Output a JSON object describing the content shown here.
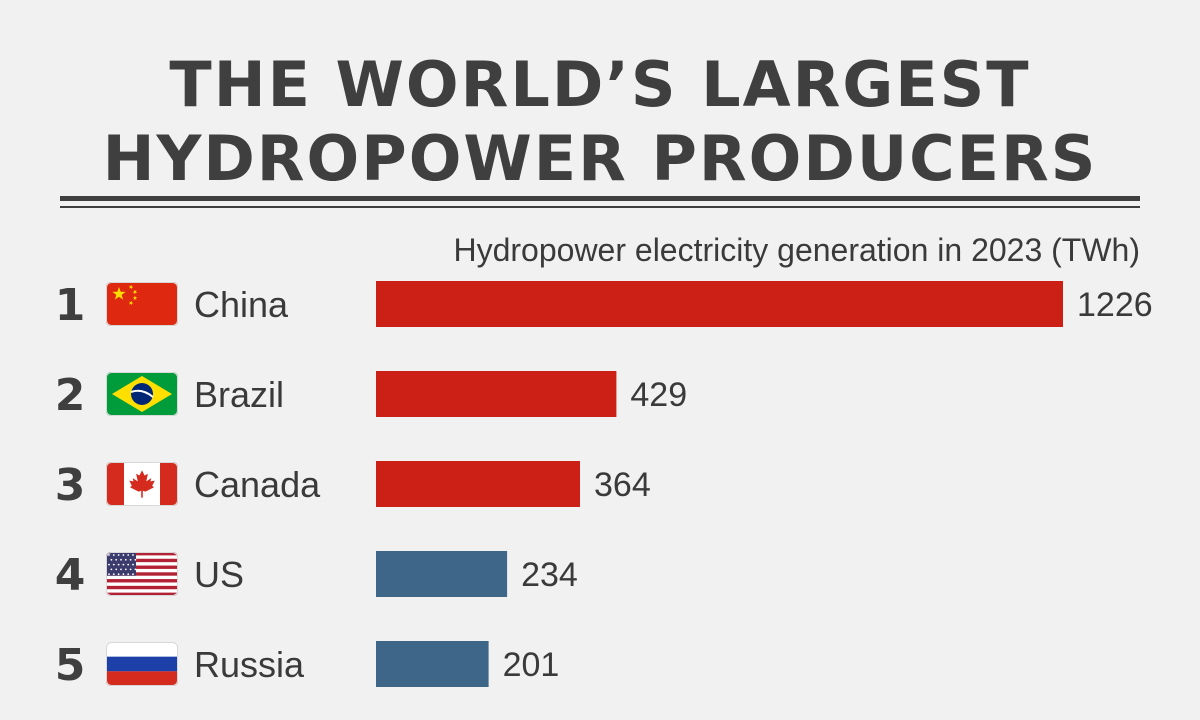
{
  "title": {
    "line1": "THE WORLD’S LARGEST",
    "line2": "HYDROPOWER PRODUCERS"
  },
  "chart_data": {
    "type": "bar",
    "orientation": "horizontal",
    "title": "THE WORLD’S LARGEST HYDROPOWER PRODUCERS",
    "subtitle": "Hydropower electricity generation in 2023 (TWh)",
    "categories": [
      "China",
      "Brazil",
      "Canada",
      "US",
      "Russia"
    ],
    "ranks": [
      "1",
      "2",
      "3",
      "4",
      "5"
    ],
    "values": [
      1226,
      429,
      364,
      234,
      201
    ],
    "value_labels": [
      "1226",
      "429",
      "364",
      "234",
      "201"
    ],
    "flags": [
      "china-flag-icon",
      "brazil-flag-icon",
      "canada-flag-icon",
      "us-flag-icon",
      "russia-flag-icon"
    ],
    "colors": [
      "#cc1f16",
      "#cc1f16",
      "#cc1f16",
      "#3d6689",
      "#3d6689"
    ],
    "xlim": [
      0,
      1226
    ],
    "grid": false,
    "legend": "none"
  }
}
